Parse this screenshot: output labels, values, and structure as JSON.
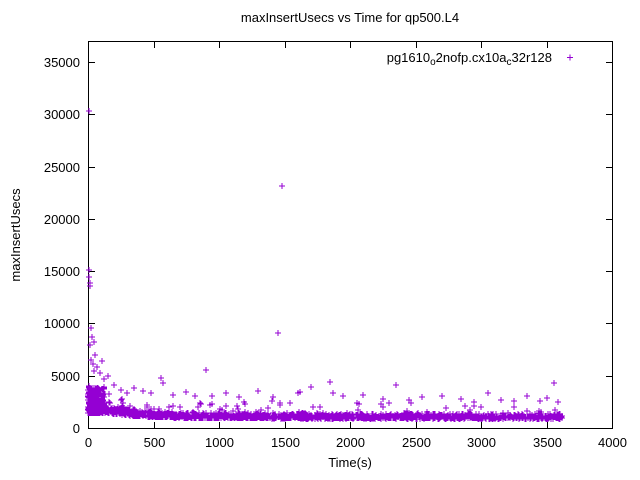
{
  "title": "maxInsertUsecs vs Time for qp500.L4",
  "axes": {
    "x": {
      "label": "Time(s)",
      "min": 0,
      "max": 4000,
      "tick_values": [
        0,
        500,
        1000,
        1500,
        2000,
        2500,
        3000,
        3500,
        4000
      ],
      "ticks": [
        "0",
        "500",
        "1000",
        "1500",
        "2000",
        "2500",
        "3000",
        "3500",
        "4000"
      ]
    },
    "y": {
      "label": "maxInsertUsecs",
      "min": 0,
      "max": 37000,
      "tick_values": [
        0,
        5000,
        10000,
        15000,
        20000,
        25000,
        30000,
        35000
      ],
      "ticks": [
        "0",
        "5000",
        "10000",
        "15000",
        "20000",
        "25000",
        "30000",
        "35000"
      ]
    }
  },
  "legend": {
    "marker": "plus",
    "color": "#9400d3",
    "label_plain": "pg1610_o2nofp.cx10a_c32r128",
    "label_parts": [
      {
        "text": "pg1610",
        "sub": false
      },
      {
        "text": "o",
        "sub": true
      },
      {
        "text": "2nofp.cx10a",
        "sub": false
      },
      {
        "text": "c",
        "sub": true
      },
      {
        "text": "32r128",
        "sub": false
      }
    ]
  },
  "colors": {
    "points": "#9400d3",
    "axis": "#000000",
    "background": "#ffffff",
    "text": "#000000"
  },
  "chart_data": {
    "type": "scatter",
    "title": "maxInsertUsecs vs Time for qp500.L4",
    "xlabel": "Time(s)",
    "ylabel": "maxInsertUsecs",
    "xlim": [
      0,
      4000
    ],
    "ylim": [
      0,
      37000
    ],
    "grid": false,
    "legend_position": "top-right",
    "series": [
      {
        "name": "pg1610_o2nofp.cx10a_c32r128",
        "marker": "plus",
        "color": "#9400d3",
        "outliers": [
          [
            10,
            30300
          ],
          [
            1480,
            23100
          ],
          [
            1450,
            9050
          ],
          [
            8,
            15100
          ],
          [
            9,
            14400
          ],
          [
            13,
            13900
          ],
          [
            18,
            13600
          ],
          [
            22,
            9600
          ],
          [
            30,
            8700
          ],
          [
            42,
            8200
          ],
          [
            16,
            7900
          ],
          [
            55,
            7000
          ],
          [
            26,
            6500
          ],
          [
            36,
            6150
          ],
          [
            70,
            5850
          ],
          [
            48,
            5450
          ],
          [
            95,
            5250
          ],
          [
            110,
            6400
          ],
          [
            120,
            4650
          ],
          [
            150,
            5000
          ],
          [
            200,
            4150
          ],
          [
            250,
            3650
          ],
          [
            300,
            3350
          ],
          [
            350,
            3800
          ],
          [
            420,
            3500
          ],
          [
            480,
            3300
          ],
          [
            560,
            4750
          ],
          [
            575,
            4300
          ],
          [
            650,
            3150
          ],
          [
            750,
            3400
          ],
          [
            820,
            3050
          ],
          [
            900,
            5550
          ],
          [
            950,
            3100
          ],
          [
            1050,
            3300
          ],
          [
            1150,
            2950
          ],
          [
            1300,
            3500
          ],
          [
            1600,
            3300
          ],
          [
            1700,
            3900
          ],
          [
            1850,
            4400
          ],
          [
            1870,
            3300
          ],
          [
            1950,
            3050
          ],
          [
            2100,
            3200
          ],
          [
            2250,
            2800
          ],
          [
            2350,
            4150
          ],
          [
            2450,
            2650
          ],
          [
            2550,
            2950
          ],
          [
            2700,
            3050
          ],
          [
            2850,
            2800
          ],
          [
            2950,
            2500
          ],
          [
            3050,
            3300
          ],
          [
            3150,
            2700
          ],
          [
            3250,
            2550
          ],
          [
            3350,
            3050
          ],
          [
            3450,
            2600
          ],
          [
            3500,
            2900
          ],
          [
            3560,
            4350
          ],
          [
            3590,
            2450
          ]
        ],
        "band": {
          "seed": 1337,
          "count": 1600,
          "x_min": 5,
          "x_max": 3620,
          "x_pow": 1.12,
          "base_floor": 1100,
          "base_amp": 1150,
          "base_decay": 270,
          "spread": 0.45,
          "spike_prob": 0.06,
          "spike_amp": 1500,
          "big_spike_prob": 0.01,
          "big_spike_amp": 2600,
          "y_min": 900
        },
        "early_cluster": {
          "seed": 99,
          "count": 320,
          "x_min": 3,
          "x_max": 130,
          "y_min": 1400,
          "y_max": 3900
        }
      }
    ]
  }
}
